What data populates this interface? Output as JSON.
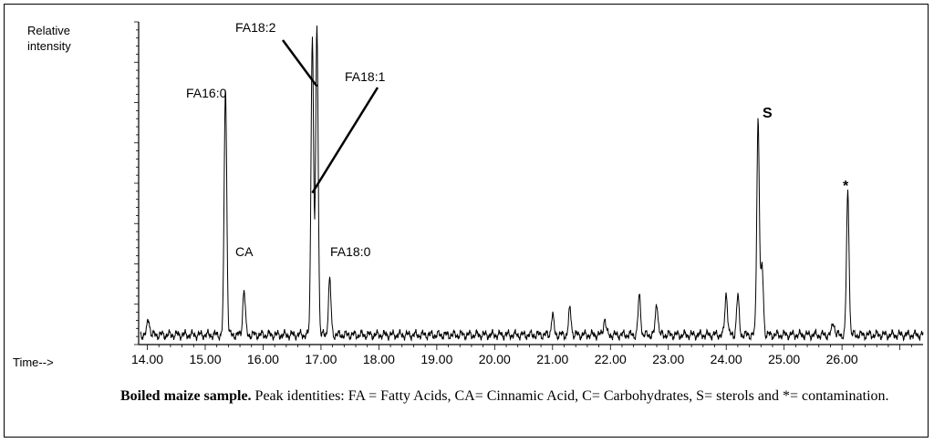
{
  "chart_data": {
    "type": "line",
    "ylabel_lines": [
      "Relative",
      "intensity"
    ],
    "xlabel_prefix": "Time-->",
    "xlim": [
      13.85,
      27.4
    ],
    "ylim": [
      0,
      100
    ],
    "x_ticks": [
      "14.00",
      "15.00",
      "16.00",
      "17.00",
      "18.00",
      "19.00",
      "20.00",
      "21.00",
      "22.00",
      "23.00",
      "24.00",
      "25.00",
      "26.00"
    ],
    "baseline": 3,
    "peaks": [
      {
        "x": 14.02,
        "y": 8
      },
      {
        "x": 15.35,
        "y": 80
      },
      {
        "x": 15.67,
        "y": 17
      },
      {
        "x": 16.85,
        "y": 96
      },
      {
        "x": 16.93,
        "y": 98
      },
      {
        "x": 17.15,
        "y": 20
      },
      {
        "x": 21.0,
        "y": 9
      },
      {
        "x": 21.3,
        "y": 11
      },
      {
        "x": 21.9,
        "y": 8
      },
      {
        "x": 22.5,
        "y": 15
      },
      {
        "x": 22.8,
        "y": 13
      },
      {
        "x": 24.0,
        "y": 16
      },
      {
        "x": 24.2,
        "y": 15
      },
      {
        "x": 24.55,
        "y": 70
      },
      {
        "x": 24.62,
        "y": 24
      },
      {
        "x": 25.85,
        "y": 7
      },
      {
        "x": 26.1,
        "y": 47
      }
    ],
    "annotations": [
      {
        "label": "FA16:0",
        "x": 15.35
      },
      {
        "label": "CA",
        "x": 15.67
      },
      {
        "label": "FA18:2",
        "x": 16.93
      },
      {
        "label": "FA18:1",
        "x": 16.85
      },
      {
        "label": "FA18:0",
        "x": 17.15
      },
      {
        "label": "S",
        "x": 24.55
      },
      {
        "label": "*",
        "x": 26.1
      }
    ]
  },
  "caption": {
    "bold": "Boiled maize sample.",
    "text": " Peak identities: FA = Fatty Acids, CA= Cinnamic Acid, C= Carbohydrates, S= sterols and *= contamination."
  }
}
